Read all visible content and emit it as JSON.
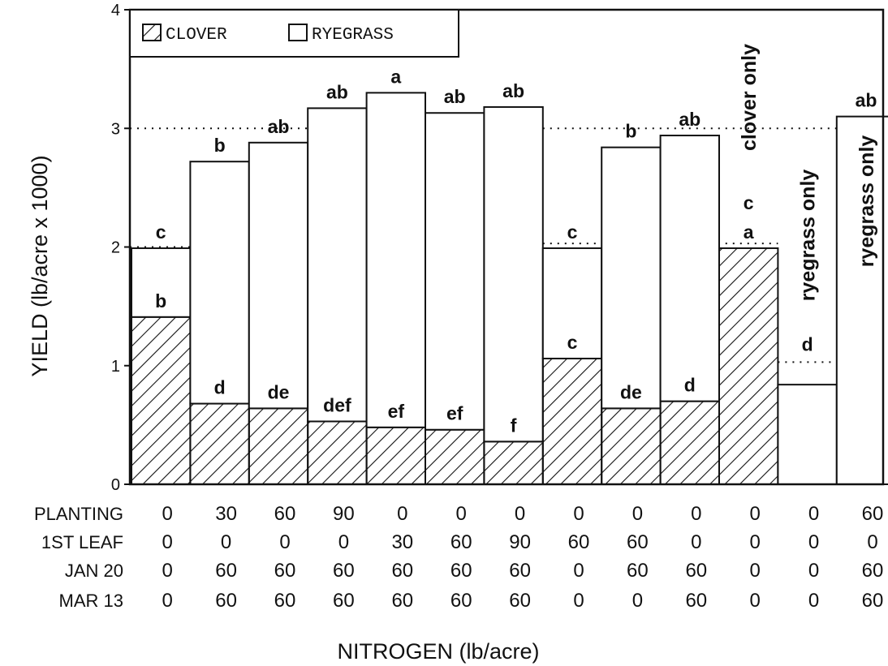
{
  "chart_data": {
    "type": "bar",
    "stacked": true,
    "ylabel": "YIELD (lb/acre x 1000)",
    "xlabel": "NITROGEN (lb/acre)",
    "ylim": [
      0,
      4
    ],
    "yticks": [
      "0",
      "1",
      "2",
      "3",
      "4"
    ],
    "legend": {
      "position": "top-left",
      "items": [
        {
          "name": "CLOVER",
          "pattern": "hatched"
        },
        {
          "name": "RYEGRASS",
          "pattern": "open"
        }
      ]
    },
    "series": [
      {
        "name": "CLOVER",
        "values": [
          1.41,
          0.68,
          0.64,
          0.53,
          0.48,
          0.46,
          0.36,
          1.06,
          0.64,
          0.7,
          1.99,
          0,
          0
        ]
      },
      {
        "name": "RYEGRASS",
        "values": [
          0.58,
          2.04,
          2.24,
          2.64,
          2.82,
          2.67,
          2.82,
          0.93,
          2.2,
          2.24,
          0,
          0.84,
          3.1
        ]
      }
    ],
    "totals": [
      1.99,
      2.72,
      2.88,
      3.17,
      3.3,
      3.13,
      3.18,
      1.99,
      2.84,
      2.94,
      1.99,
      0.84,
      3.1
    ],
    "total_labels": [
      "c",
      "b",
      "ab",
      "ab",
      "a",
      "ab",
      "ab",
      "c",
      "b",
      "ab",
      "c",
      "d",
      "ab"
    ],
    "clover_labels": [
      "b",
      "d",
      "de",
      "def",
      "ef",
      "ef",
      "f",
      "c",
      "de",
      "d",
      "a",
      "",
      ""
    ],
    "bar_notes": [
      "",
      "",
      "",
      "",
      "",
      "",
      "",
      "",
      "",
      "",
      "clover only",
      "ryegrass only",
      "ryegrass only"
    ],
    "reference_lines": [
      {
        "y": 3.0,
        "from_bar": 0,
        "to_bar": 6
      },
      {
        "y": 2.0,
        "from_bar": 0,
        "to_bar": 0
      },
      {
        "y": 3.0,
        "from_bar": 7,
        "to_bar": 11
      },
      {
        "y": 2.03,
        "from_bar": 7,
        "to_bar": 10
      },
      {
        "y": 1.03,
        "from_bar": 11,
        "to_bar": 11
      }
    ],
    "treatment_table": [
      {
        "label": "PLANTING",
        "values": [
          "0",
          "30",
          "60",
          "90",
          "0",
          "0",
          "0",
          "0",
          "0",
          "0",
          "0",
          "0",
          "60"
        ]
      },
      {
        "label": "1ST LEAF",
        "values": [
          "0",
          "0",
          "0",
          "0",
          "30",
          "60",
          "90",
          "60",
          "60",
          "0",
          "0",
          "0",
          "0"
        ]
      },
      {
        "label": "JAN 20",
        "values": [
          "0",
          "60",
          "60",
          "60",
          "60",
          "60",
          "60",
          "0",
          "60",
          "60",
          "0",
          "0",
          "60"
        ]
      },
      {
        "label": "MAR 13",
        "values": [
          "0",
          "60",
          "60",
          "60",
          "60",
          "60",
          "60",
          "0",
          "0",
          "60",
          "0",
          "0",
          "60"
        ]
      }
    ]
  }
}
